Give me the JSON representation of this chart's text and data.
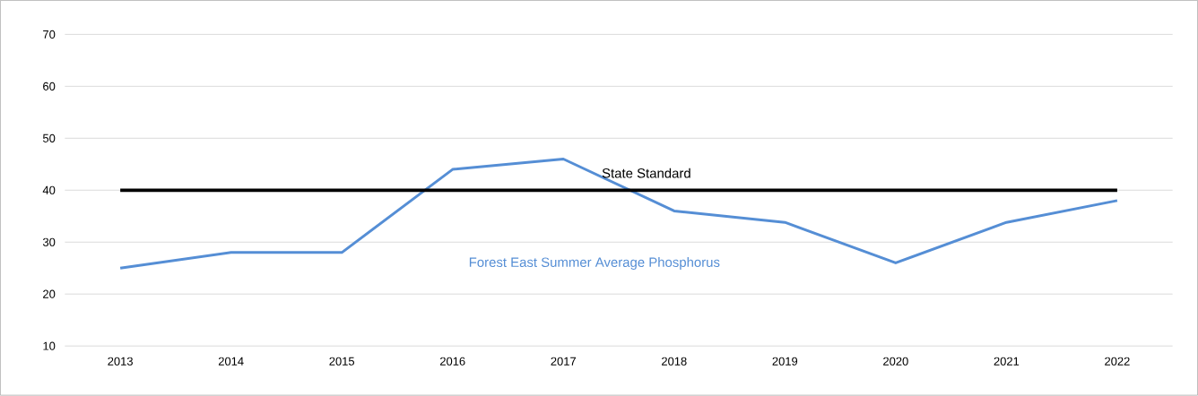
{
  "chart_data": {
    "type": "line",
    "categories": [
      "2013",
      "2014",
      "2015",
      "2016",
      "2017",
      "2018",
      "2019",
      "2020",
      "2021",
      "2022"
    ],
    "series": [
      {
        "name": "Forest East Summer Average Phosphorus",
        "color": "#558ed5",
        "values": [
          25,
          28,
          28,
          44,
          46,
          36,
          33.8,
          26,
          33.8,
          38
        ]
      },
      {
        "name": "State Standard",
        "color": "#000000",
        "values": [
          40,
          40,
          40,
          40,
          40,
          40,
          40,
          40,
          40,
          40
        ]
      }
    ],
    "ylim": [
      10,
      70
    ],
    "yticks": [
      10,
      20,
      30,
      40,
      50,
      60,
      70
    ],
    "grid": "y",
    "legend": false,
    "marker": "none",
    "line_style": "solid"
  }
}
